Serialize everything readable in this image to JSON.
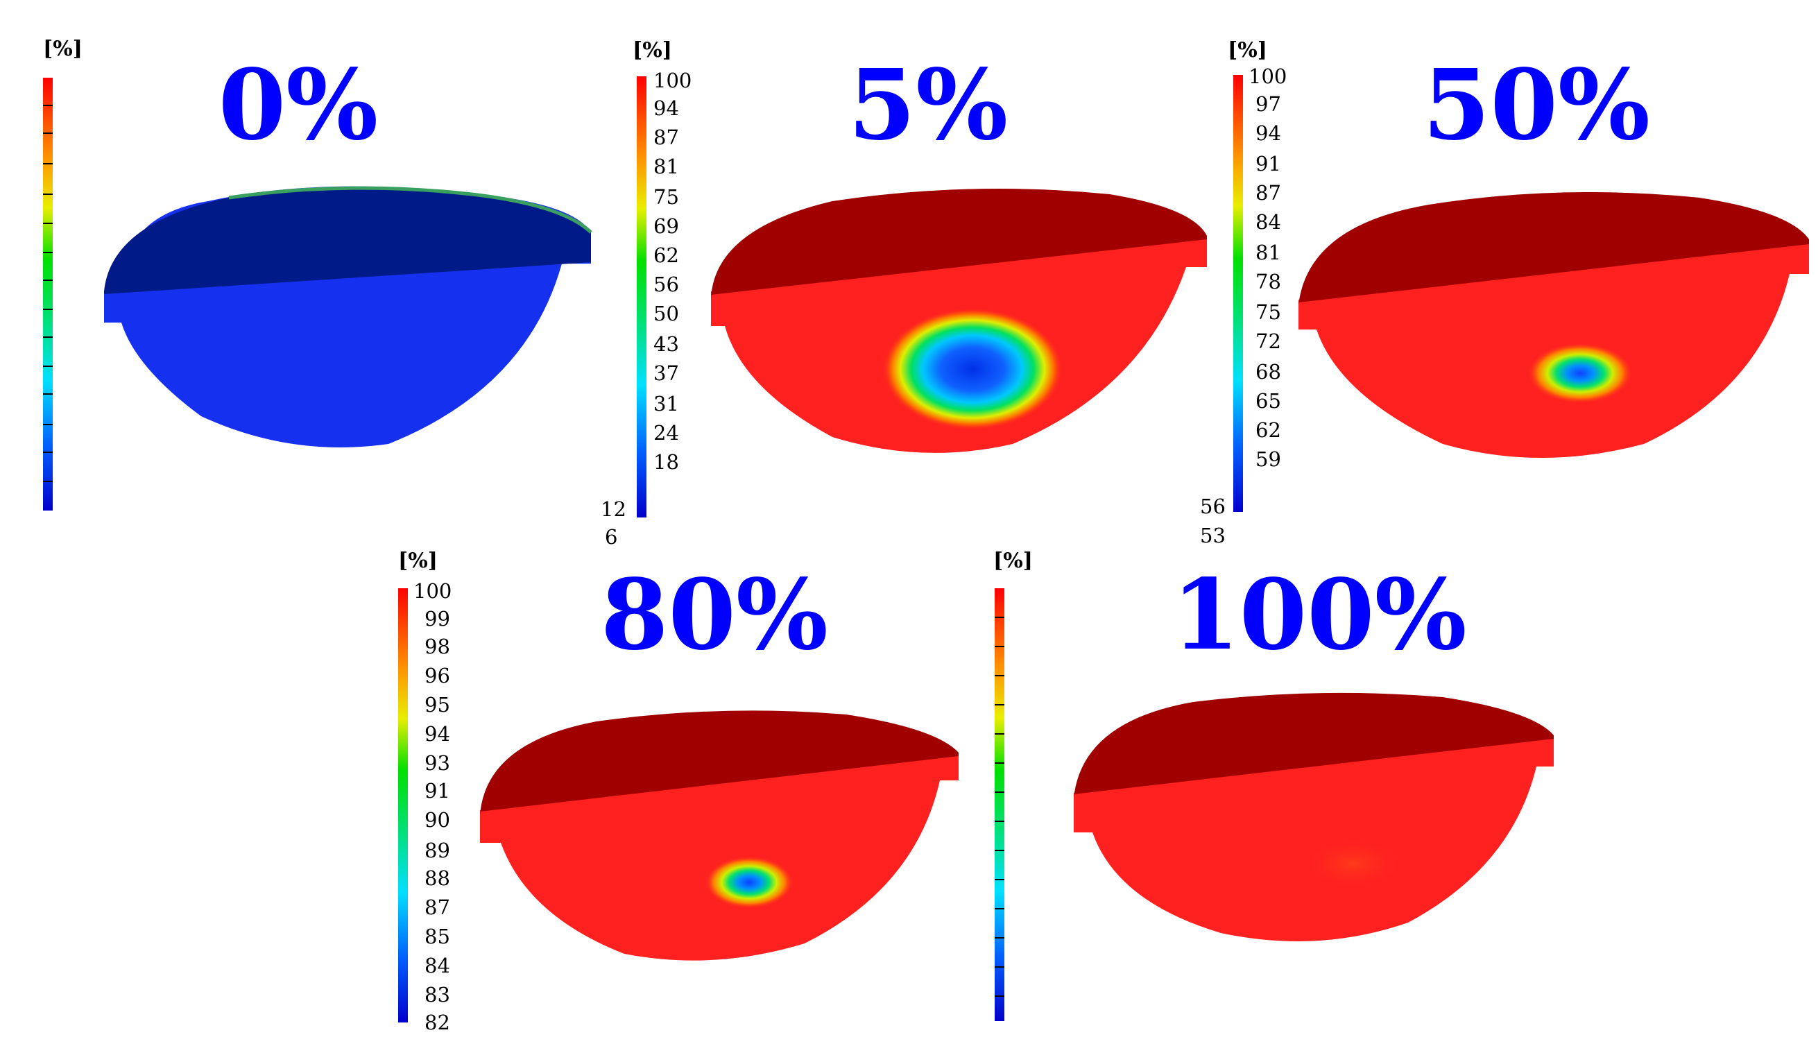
{
  "figure": {
    "unit_label": "[%]",
    "title_color": "#0000ff",
    "panels": [
      {
        "title": "0%",
        "ticks": [],
        "min_label": "",
        "field": "uniform-blue"
      },
      {
        "title": "5%",
        "ticks": [
          "100",
          "94",
          "87",
          "81",
          "75",
          "69",
          "62",
          "56",
          "50",
          "43",
          "37",
          "31",
          "24",
          "18"
        ],
        "min_label": "12",
        "sub_min_label": "6",
        "field": "large-blue-spot"
      },
      {
        "title": "50%",
        "ticks": [
          "100",
          "97",
          "94",
          "91",
          "87",
          "84",
          "81",
          "78",
          "75",
          "72",
          "68",
          "65",
          "62",
          "59"
        ],
        "min_label": "56",
        "sub_min_label": "53",
        "field": "medium-blue-spot"
      },
      {
        "title": "80%",
        "ticks": [
          "100",
          "99",
          "98",
          "96",
          "95",
          "94",
          "93",
          "91",
          "90",
          "89",
          "88",
          "87",
          "85",
          "84",
          "83"
        ],
        "min_label": "82",
        "sub_min_label": "",
        "field": "small-blue-spot"
      },
      {
        "title": "100%",
        "ticks": [],
        "min_label": "",
        "field": "uniform-red"
      }
    ]
  }
}
